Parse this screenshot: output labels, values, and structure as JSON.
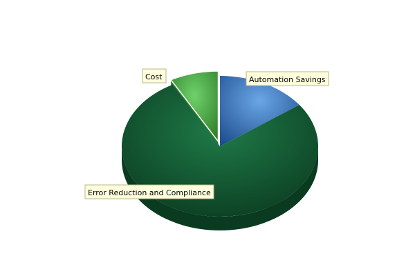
{
  "chart_data": {
    "type": "pie",
    "style": "3d-exploded",
    "title": "",
    "slices": [
      {
        "label": "Automation Savings",
        "value": 15,
        "color": "#6aa6e6",
        "dark_color": "#1f4f8f",
        "exploded": false
      },
      {
        "label": "Error Reduction and Compliance",
        "value": 77,
        "color": "#1f7a48",
        "dark_color": "#0a3a1f",
        "exploded": false
      },
      {
        "label": "Cost",
        "value": 8,
        "color": "#6fd16a",
        "dark_color": "#2e7d2a",
        "exploded": true
      }
    ]
  }
}
